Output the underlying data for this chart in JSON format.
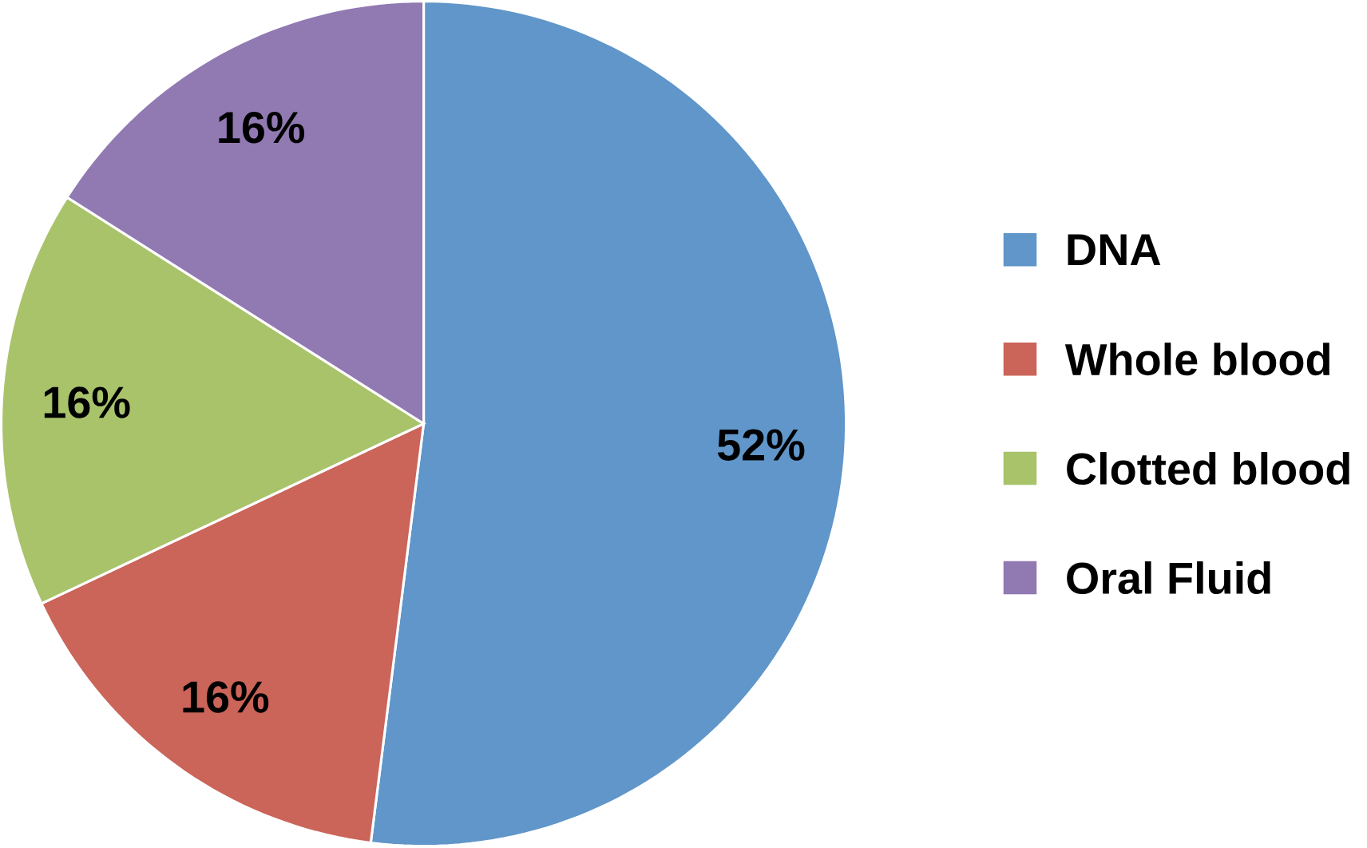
{
  "chart_data": {
    "type": "pie",
    "categories": [
      "DNA",
      "Whole blood",
      "Clotted blood",
      "Oral Fluid"
    ],
    "values": [
      52,
      16,
      16,
      16
    ],
    "colors": [
      "#6096c9",
      "#cb6459",
      "#a9c36b",
      "#9179b2"
    ],
    "value_labels": [
      "52%",
      "16%",
      "16%",
      "16%"
    ],
    "legend": "right"
  }
}
